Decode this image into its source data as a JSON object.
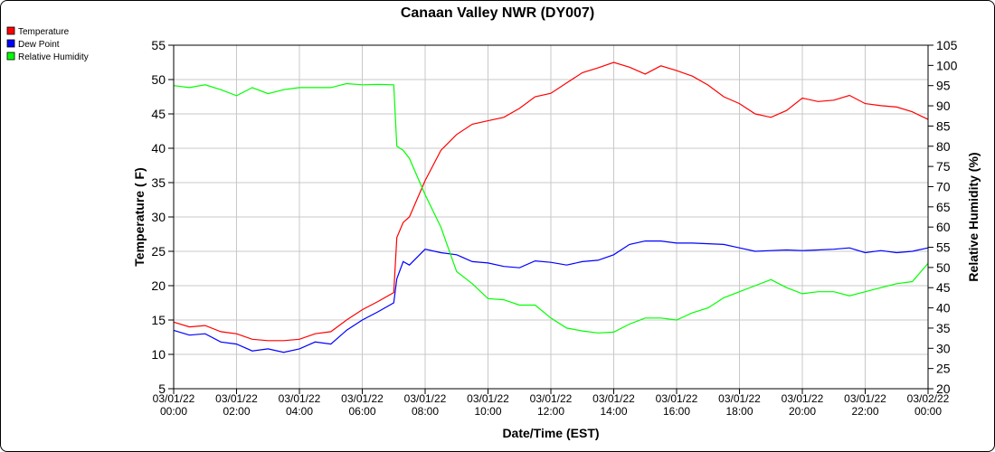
{
  "chart_data": {
    "type": "line",
    "title": "Canaan Valley NWR (DY007)",
    "xlabel": "Date/Time (EST)",
    "ylabel": "Temperature ( F)",
    "y2label": "Relative Humidity (%)",
    "ylim": [
      5,
      55
    ],
    "y2lim": [
      20,
      105
    ],
    "yticks": [
      5,
      10,
      15,
      20,
      25,
      30,
      35,
      40,
      45,
      50,
      55
    ],
    "y2ticks": [
      20,
      25,
      30,
      35,
      40,
      45,
      50,
      55,
      60,
      65,
      70,
      75,
      80,
      85,
      90,
      95,
      100,
      105
    ],
    "xlim_hours": [
      0,
      24
    ],
    "xticks": [
      {
        "date": "03/01/22",
        "time": "00:00"
      },
      {
        "date": "03/01/22",
        "time": "02:00"
      },
      {
        "date": "03/01/22",
        "time": "04:00"
      },
      {
        "date": "03/01/22",
        "time": "06:00"
      },
      {
        "date": "03/01/22",
        "time": "08:00"
      },
      {
        "date": "03/01/22",
        "time": "10:00"
      },
      {
        "date": "03/01/22",
        "time": "12:00"
      },
      {
        "date": "03/01/22",
        "time": "14:00"
      },
      {
        "date": "03/01/22",
        "time": "16:00"
      },
      {
        "date": "03/01/22",
        "time": "18:00"
      },
      {
        "date": "03/01/22",
        "time": "20:00"
      },
      {
        "date": "03/01/22",
        "time": "22:00"
      },
      {
        "date": "03/02/22",
        "time": "00:00"
      }
    ],
    "grid": true,
    "legend_position": "top-left",
    "x_hours": [
      0,
      0.5,
      1,
      1.5,
      2,
      2.5,
      3,
      3.5,
      4,
      4.5,
      5,
      5.5,
      6,
      6.5,
      7,
      7.1,
      7.3,
      7.5,
      8,
      8.5,
      9,
      9.5,
      10,
      10.5,
      11,
      11.5,
      12,
      12.5,
      13,
      13.5,
      14,
      14.5,
      15,
      15.5,
      16,
      16.5,
      17,
      17.5,
      18,
      18.5,
      19,
      19.5,
      20,
      20.5,
      21,
      21.5,
      22,
      22.5,
      23,
      23.5,
      24
    ],
    "series": [
      {
        "name": "Temperature",
        "color": "#ff0000",
        "axis": "left",
        "values": [
          14.7,
          14.0,
          14.2,
          13.3,
          13.0,
          12.2,
          12.0,
          12.0,
          12.2,
          13.0,
          13.3,
          15.0,
          16.5,
          17.7,
          19.0,
          27.0,
          29.2,
          30.0,
          35.3,
          39.7,
          42.0,
          43.5,
          44.0,
          44.5,
          45.8,
          47.5,
          48.0,
          49.5,
          51.0,
          51.7,
          52.5,
          51.8,
          50.8,
          52.0,
          51.3,
          50.5,
          49.2,
          47.5,
          46.5,
          45.0,
          44.5,
          45.5,
          47.3,
          46.8,
          47.0,
          47.7,
          46.5,
          46.2,
          46.0,
          45.3,
          44.2
        ]
      },
      {
        "name": "Dew Point",
        "color": "#0000ff",
        "axis": "left",
        "values": [
          13.5,
          12.8,
          13.0,
          11.8,
          11.5,
          10.5,
          10.8,
          10.3,
          10.8,
          11.8,
          11.5,
          13.5,
          15.0,
          16.2,
          17.5,
          21.0,
          23.5,
          23.0,
          25.3,
          24.8,
          24.5,
          23.5,
          23.3,
          22.8,
          22.6,
          23.6,
          23.4,
          23.0,
          23.5,
          23.7,
          24.5,
          26.0,
          26.5,
          26.5,
          26.2,
          26.2,
          26.1,
          26.0,
          25.5,
          25.0,
          25.1,
          25.2,
          25.1,
          25.2,
          25.3,
          25.5,
          24.8,
          25.1,
          24.8,
          25.0,
          25.5
        ]
      },
      {
        "name": "Relative Humidity",
        "color": "#00ff00",
        "axis": "right",
        "values": [
          95.0,
          94.5,
          95.2,
          94.0,
          92.5,
          94.5,
          93.0,
          94.0,
          94.5,
          94.5,
          94.5,
          95.5,
          95.2,
          95.3,
          95.2,
          80.0,
          79.0,
          77.0,
          68.0,
          60.0,
          49.0,
          46.0,
          42.3,
          42.0,
          40.7,
          40.7,
          37.5,
          35.0,
          34.3,
          33.8,
          34.0,
          36.0,
          37.5,
          37.5,
          37.0,
          38.8,
          40.0,
          42.5,
          44.0,
          45.5,
          47.0,
          45.0,
          43.5,
          44.0,
          44.0,
          43.0,
          44.0,
          45.0,
          46.0,
          46.5,
          51.0
        ]
      }
    ]
  }
}
